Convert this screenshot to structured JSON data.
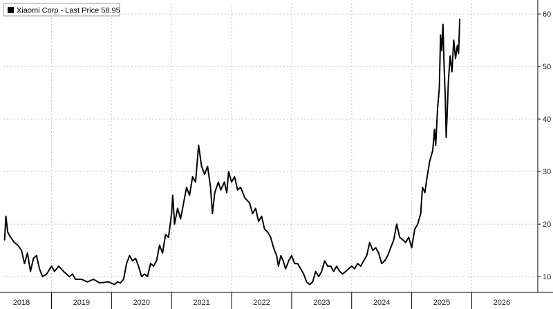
{
  "chart_data": {
    "type": "line",
    "title": "",
    "xlabel": "",
    "ylabel": "",
    "legend": {
      "placement": "top-left",
      "text": "Xiaomi Corp - Last Price 58.95"
    },
    "colors": {
      "series": "#000000",
      "grid": "#c8c8c8",
      "background": "#ffffff"
    },
    "grid": true,
    "y_axis_position": "right",
    "xlim": [
      2017.7,
      2026.6
    ],
    "ylim": [
      7,
      62
    ],
    "x_ticks": [
      {
        "x": 2018.0,
        "label": "2018"
      },
      {
        "x": 2019.0,
        "label": "2019"
      },
      {
        "x": 2020.0,
        "label": "2020"
      },
      {
        "x": 2021.0,
        "label": "2021"
      },
      {
        "x": 2022.0,
        "label": "2022"
      },
      {
        "x": 2023.0,
        "label": "2023"
      },
      {
        "x": 2024.0,
        "label": "2024"
      },
      {
        "x": 2025.0,
        "label": "2025"
      },
      {
        "x": 2026.0,
        "label": "2026"
      }
    ],
    "year_dividers": [
      2018.5,
      2019.5,
      2020.5,
      2021.5,
      2022.5,
      2023.5,
      2024.5,
      2025.5
    ],
    "y_ticks": [
      {
        "y": 10,
        "label": "10"
      },
      {
        "y": 20,
        "label": "20"
      },
      {
        "y": 30,
        "label": "30"
      },
      {
        "y": 40,
        "label": "40"
      },
      {
        "y": 50,
        "label": "50"
      },
      {
        "y": 60,
        "label": "60"
      }
    ],
    "series": [
      {
        "name": "Xiaomi Corp - Last Price",
        "points": [
          [
            2017.72,
            17.0
          ],
          [
            2017.74,
            21.5
          ],
          [
            2017.77,
            18.5
          ],
          [
            2017.82,
            17.5
          ],
          [
            2017.88,
            16.5
          ],
          [
            2017.94,
            16.0
          ],
          [
            2018.0,
            15.0
          ],
          [
            2018.05,
            12.5
          ],
          [
            2018.1,
            14.5
          ],
          [
            2018.15,
            11.0
          ],
          [
            2018.2,
            13.5
          ],
          [
            2018.25,
            14.0
          ],
          [
            2018.3,
            11.5
          ],
          [
            2018.35,
            10.0
          ],
          [
            2018.42,
            10.5
          ],
          [
            2018.5,
            12.0
          ],
          [
            2018.55,
            11.0
          ],
          [
            2018.62,
            12.0
          ],
          [
            2018.7,
            11.0
          ],
          [
            2018.8,
            10.0
          ],
          [
            2018.85,
            10.5
          ],
          [
            2018.9,
            9.5
          ],
          [
            2019.0,
            9.5
          ],
          [
            2019.1,
            9.0
          ],
          [
            2019.2,
            9.5
          ],
          [
            2019.3,
            8.8
          ],
          [
            2019.45,
            9.0
          ],
          [
            2019.55,
            8.5
          ],
          [
            2019.6,
            9.0
          ],
          [
            2019.65,
            8.8
          ],
          [
            2019.7,
            9.5
          ],
          [
            2019.75,
            12.5
          ],
          [
            2019.8,
            14.0
          ],
          [
            2019.85,
            13.0
          ],
          [
            2019.9,
            13.5
          ],
          [
            2019.95,
            12.0
          ],
          [
            2020.0,
            10.0
          ],
          [
            2020.05,
            10.5
          ],
          [
            2020.1,
            10.0
          ],
          [
            2020.15,
            12.5
          ],
          [
            2020.2,
            12.0
          ],
          [
            2020.25,
            13.0
          ],
          [
            2020.3,
            16.0
          ],
          [
            2020.35,
            14.5
          ],
          [
            2020.4,
            18.0
          ],
          [
            2020.45,
            17.5
          ],
          [
            2020.5,
            22.0
          ],
          [
            2020.52,
            25.5
          ],
          [
            2020.55,
            20.0
          ],
          [
            2020.6,
            23.0
          ],
          [
            2020.65,
            21.0
          ],
          [
            2020.7,
            24.0
          ],
          [
            2020.75,
            27.0
          ],
          [
            2020.8,
            25.5
          ],
          [
            2020.85,
            29.0
          ],
          [
            2020.9,
            28.0
          ],
          [
            2020.95,
            35.0
          ],
          [
            2021.0,
            31.0
          ],
          [
            2021.05,
            29.5
          ],
          [
            2021.1,
            31.0
          ],
          [
            2021.15,
            27.0
          ],
          [
            2021.18,
            22.0
          ],
          [
            2021.22,
            26.0
          ],
          [
            2021.28,
            28.0
          ],
          [
            2021.32,
            26.5
          ],
          [
            2021.38,
            28.0
          ],
          [
            2021.42,
            26.0
          ],
          [
            2021.45,
            30.0
          ],
          [
            2021.5,
            28.0
          ],
          [
            2021.55,
            29.0
          ],
          [
            2021.6,
            26.5
          ],
          [
            2021.65,
            27.0
          ],
          [
            2021.72,
            25.0
          ],
          [
            2021.8,
            24.0
          ],
          [
            2021.85,
            22.0
          ],
          [
            2021.9,
            23.0
          ],
          [
            2021.95,
            20.5
          ],
          [
            2022.0,
            21.5
          ],
          [
            2022.05,
            19.0
          ],
          [
            2022.1,
            18.5
          ],
          [
            2022.15,
            17.5
          ],
          [
            2022.2,
            15.5
          ],
          [
            2022.25,
            14.0
          ],
          [
            2022.28,
            12.0
          ],
          [
            2022.32,
            14.0
          ],
          [
            2022.36,
            13.0
          ],
          [
            2022.4,
            11.5
          ],
          [
            2022.45,
            13.0
          ],
          [
            2022.5,
            14.0
          ],
          [
            2022.55,
            12.5
          ],
          [
            2022.6,
            12.5
          ],
          [
            2022.65,
            11.5
          ],
          [
            2022.7,
            10.5
          ],
          [
            2022.75,
            9.0
          ],
          [
            2022.8,
            8.5
          ],
          [
            2022.85,
            9.0
          ],
          [
            2022.9,
            11.0
          ],
          [
            2022.95,
            10.0
          ],
          [
            2023.0,
            11.0
          ],
          [
            2023.05,
            13.0
          ],
          [
            2023.1,
            12.0
          ],
          [
            2023.15,
            12.0
          ],
          [
            2023.2,
            11.0
          ],
          [
            2023.25,
            12.0
          ],
          [
            2023.3,
            11.0
          ],
          [
            2023.35,
            10.5
          ],
          [
            2023.4,
            11.0
          ],
          [
            2023.45,
            11.5
          ],
          [
            2023.5,
            12.0
          ],
          [
            2023.55,
            11.5
          ],
          [
            2023.6,
            12.5
          ],
          [
            2023.65,
            12.0
          ],
          [
            2023.7,
            13.0
          ],
          [
            2023.75,
            14.0
          ],
          [
            2023.8,
            16.5
          ],
          [
            2023.85,
            15.0
          ],
          [
            2023.9,
            15.5
          ],
          [
            2023.95,
            14.5
          ],
          [
            2024.0,
            12.5
          ],
          [
            2024.05,
            13.0
          ],
          [
            2024.1,
            14.0
          ],
          [
            2024.15,
            15.5
          ],
          [
            2024.2,
            17.0
          ],
          [
            2024.25,
            20.0
          ],
          [
            2024.3,
            17.5
          ],
          [
            2024.35,
            17.0
          ],
          [
            2024.4,
            16.5
          ],
          [
            2024.45,
            17.5
          ],
          [
            2024.5,
            15.5
          ],
          [
            2024.55,
            19.0
          ],
          [
            2024.6,
            20.0
          ],
          [
            2024.65,
            22.0
          ],
          [
            2024.68,
            27.0
          ],
          [
            2024.72,
            26.0
          ],
          [
            2024.75,
            28.5
          ],
          [
            2024.8,
            32.0
          ],
          [
            2024.85,
            34.0
          ],
          [
            2024.88,
            38.0
          ],
          [
            2024.9,
            35.0
          ],
          [
            2024.93,
            42.0
          ],
          [
            2024.96,
            46.0
          ],
          [
            2024.98,
            56.0
          ],
          [
            2025.0,
            53.0
          ],
          [
            2025.02,
            58.0
          ],
          [
            2025.04,
            50.0
          ],
          [
            2025.06,
            44.0
          ],
          [
            2025.075,
            36.5
          ],
          [
            2025.09,
            41.0
          ],
          [
            2025.11,
            47.0
          ],
          [
            2025.14,
            52.0
          ],
          [
            2025.17,
            49.0
          ],
          [
            2025.2,
            55.0
          ],
          [
            2025.23,
            51.5
          ],
          [
            2025.26,
            54.0
          ],
          [
            2025.28,
            52.5
          ],
          [
            2025.3,
            59.0
          ]
        ]
      }
    ]
  }
}
